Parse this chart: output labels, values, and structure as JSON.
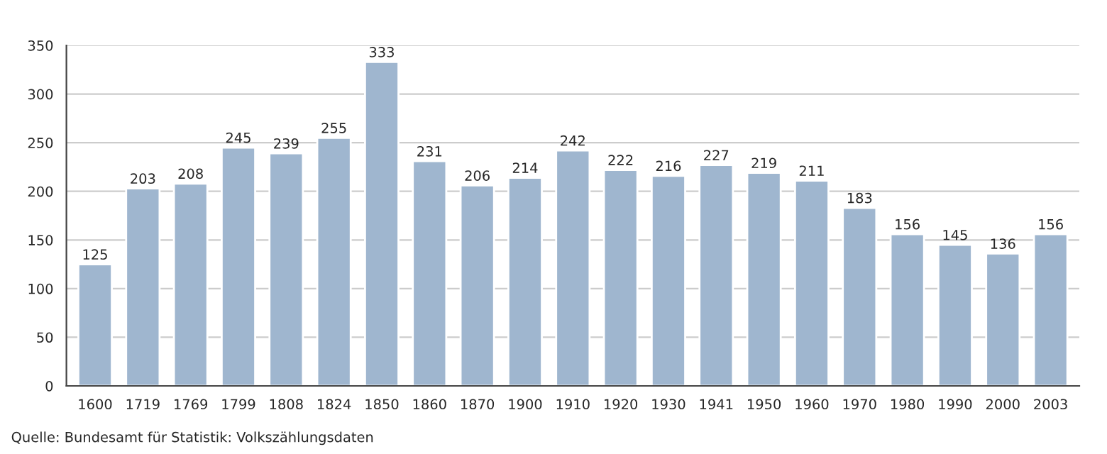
{
  "chart_data": {
    "type": "bar",
    "categories": [
      "1600",
      "1719",
      "1769",
      "1799",
      "1808",
      "1824",
      "1850",
      "1860",
      "1870",
      "1900",
      "1910",
      "1920",
      "1930",
      "1941",
      "1950",
      "1960",
      "1970",
      "1980",
      "1990",
      "2000",
      "2003"
    ],
    "values": [
      125,
      203,
      208,
      245,
      239,
      255,
      333,
      231,
      206,
      214,
      242,
      222,
      216,
      227,
      219,
      211,
      183,
      156,
      145,
      136,
      156
    ],
    "color": "#9fb6cf",
    "ylim": [
      0,
      350
    ],
    "yticks": [
      0,
      50,
      100,
      150,
      200,
      250,
      300,
      350
    ],
    "grid": "y",
    "data_labels": true,
    "annotations": [
      "Quelle: Bundesamt für Statistik: Volkszählungsdaten"
    ]
  }
}
